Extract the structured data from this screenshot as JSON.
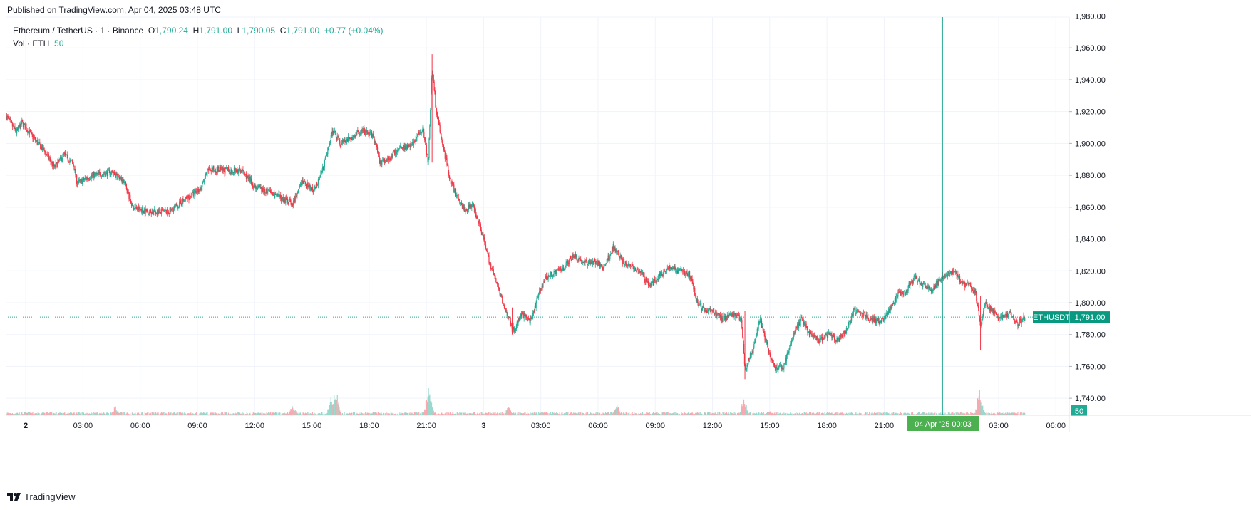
{
  "header": {
    "published": "Published on TradingView.com, Apr 04, 2025 03:48 UTC"
  },
  "legend": {
    "symbol": "Ethereum / TetherUS · 1 · Binance",
    "open_label": "O",
    "open": "1,790.24",
    "high_label": "H",
    "high": "1,791.00",
    "low_label": "L",
    "low": "1,790.05",
    "close_label": "C",
    "close": "1,791.00",
    "change": "+0.77 (+0.04%)",
    "vol_label": "Vol · ETH",
    "vol_value": "50"
  },
  "price_badge": {
    "symbol": "ETHUSDT",
    "value": "1,791.00"
  },
  "volume_badge": "50",
  "crosshair_label": "04 Apr '25   00:03",
  "footer": {
    "brand": "TradingView"
  },
  "colors": {
    "up": "#22ab94",
    "down": "#f23645",
    "crosshair": "#089981",
    "grid": "#f0f3fa"
  },
  "chart_data": {
    "type": "candlestick",
    "symbol": "ETHUSDT",
    "interval": "1",
    "ylim": [
      1730,
      1980
    ],
    "y_ticks": [
      "1,740.00",
      "1,760.00",
      "1,780.00",
      "1,800.00",
      "1,820.00",
      "1,840.00",
      "1,860.00",
      "1,880.00",
      "1,900.00",
      "1,920.00",
      "1,940.00",
      "1,960.00",
      "1,980.00"
    ],
    "x_ticks": [
      "2",
      "03:00",
      "06:00",
      "09:00",
      "12:00",
      "15:00",
      "18:00",
      "21:00",
      "3",
      "03:00",
      "06:00",
      "09:00",
      "12:00",
      "15:00",
      "18:00",
      "21:00",
      "04 Apr '25",
      "03:00",
      "06:00"
    ],
    "x_tick_hours": [
      0,
      3,
      6,
      9,
      12,
      15,
      18,
      21,
      24,
      27,
      30,
      33,
      36,
      39,
      42,
      45,
      48,
      51,
      54
    ],
    "x_range_hours": [
      -1.05,
      54.7
    ],
    "last_price": 1791.0,
    "crosshair_hour": 48.05,
    "price_path": [
      [
        -1.0,
        1917
      ],
      [
        -0.5,
        1907
      ],
      [
        -0.2,
        1913
      ],
      [
        0.5,
        1902
      ],
      [
        1.0,
        1895
      ],
      [
        1.5,
        1885
      ],
      [
        2.0,
        1893
      ],
      [
        2.5,
        1887
      ],
      [
        2.7,
        1875
      ],
      [
        3.5,
        1880
      ],
      [
        4.5,
        1882
      ],
      [
        5.2,
        1875
      ],
      [
        5.6,
        1860
      ],
      [
        6.5,
        1857
      ],
      [
        7.5,
        1857
      ],
      [
        8.5,
        1866
      ],
      [
        9.2,
        1872
      ],
      [
        9.6,
        1884
      ],
      [
        10.5,
        1883
      ],
      [
        11.3,
        1883
      ],
      [
        12.0,
        1873
      ],
      [
        13.0,
        1868
      ],
      [
        14.0,
        1862
      ],
      [
        14.5,
        1876
      ],
      [
        15.1,
        1870
      ],
      [
        15.6,
        1885
      ],
      [
        16.1,
        1908
      ],
      [
        16.5,
        1900
      ],
      [
        17.0,
        1903
      ],
      [
        17.6,
        1908
      ],
      [
        18.2,
        1905
      ],
      [
        18.6,
        1888
      ],
      [
        19.2,
        1892
      ],
      [
        19.6,
        1898
      ],
      [
        20.2,
        1898
      ],
      [
        20.8,
        1910
      ],
      [
        21.1,
        1888
      ],
      [
        21.3,
        1948
      ],
      [
        21.5,
        1922
      ],
      [
        21.8,
        1902
      ],
      [
        22.3,
        1875
      ],
      [
        22.7,
        1865
      ],
      [
        23.0,
        1858
      ],
      [
        23.4,
        1862
      ],
      [
        23.8,
        1850
      ],
      [
        24.2,
        1830
      ],
      [
        24.8,
        1808
      ],
      [
        25.3,
        1790
      ],
      [
        25.6,
        1783
      ],
      [
        26.0,
        1793
      ],
      [
        26.5,
        1788
      ],
      [
        26.8,
        1802
      ],
      [
        27.2,
        1815
      ],
      [
        27.6,
        1818
      ],
      [
        28.2,
        1822
      ],
      [
        28.7,
        1830
      ],
      [
        29.3,
        1825
      ],
      [
        29.8,
        1826
      ],
      [
        30.3,
        1822
      ],
      [
        30.8,
        1835
      ],
      [
        31.3,
        1826
      ],
      [
        31.7,
        1823
      ],
      [
        32.2,
        1820
      ],
      [
        32.7,
        1810
      ],
      [
        33.2,
        1817
      ],
      [
        33.7,
        1822
      ],
      [
        34.3,
        1820
      ],
      [
        34.8,
        1818
      ],
      [
        35.2,
        1800
      ],
      [
        35.6,
        1795
      ],
      [
        36.0,
        1795
      ],
      [
        36.5,
        1790
      ],
      [
        37.1,
        1793
      ],
      [
        37.5,
        1790
      ],
      [
        37.7,
        1758
      ],
      [
        38.1,
        1770
      ],
      [
        38.5,
        1790
      ],
      [
        38.8,
        1775
      ],
      [
        39.3,
        1758
      ],
      [
        39.7,
        1760
      ],
      [
        40.0,
        1770
      ],
      [
        40.3,
        1782
      ],
      [
        40.7,
        1790
      ],
      [
        41.1,
        1780
      ],
      [
        41.6,
        1776
      ],
      [
        42.1,
        1780
      ],
      [
        42.6,
        1776
      ],
      [
        43.0,
        1782
      ],
      [
        43.4,
        1795
      ],
      [
        43.8,
        1793
      ],
      [
        44.3,
        1790
      ],
      [
        44.8,
        1788
      ],
      [
        45.3,
        1795
      ],
      [
        45.7,
        1805
      ],
      [
        46.1,
        1806
      ],
      [
        46.6,
        1816
      ],
      [
        47.1,
        1810
      ],
      [
        47.5,
        1808
      ],
      [
        47.9,
        1814
      ],
      [
        48.3,
        1818
      ],
      [
        48.7,
        1820
      ],
      [
        49.1,
        1812
      ],
      [
        49.5,
        1811
      ],
      [
        49.8,
        1806
      ],
      [
        50.05,
        1785
      ],
      [
        50.3,
        1800
      ],
      [
        50.7,
        1794
      ],
      [
        51.1,
        1790
      ],
      [
        51.6,
        1793
      ],
      [
        52.0,
        1787
      ],
      [
        52.4,
        1791
      ]
    ],
    "volume_spikes": [
      [
        4.7,
        14
      ],
      [
        14.0,
        16
      ],
      [
        16.0,
        26
      ],
      [
        16.2,
        30
      ],
      [
        16.3,
        36
      ],
      [
        21.1,
        40
      ],
      [
        21.2,
        24
      ],
      [
        25.3,
        12
      ],
      [
        31.0,
        14
      ],
      [
        37.65,
        30
      ],
      [
        37.7,
        22
      ],
      [
        39.0,
        8
      ],
      [
        50.0,
        40
      ],
      [
        50.1,
        22
      ]
    ]
  }
}
